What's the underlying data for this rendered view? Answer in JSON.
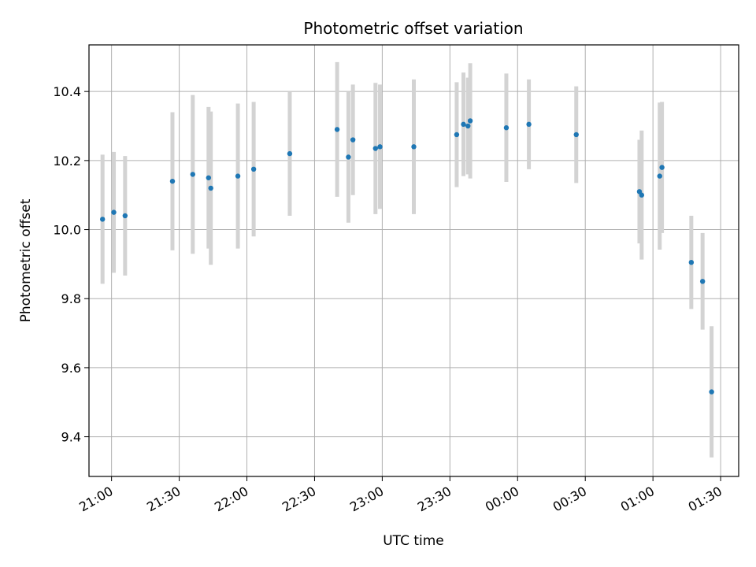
{
  "chart_data": {
    "type": "scatter",
    "title": "Photometric offset variation",
    "xlabel": "UTC time",
    "ylabel": "Photometric offset",
    "x_ticks": [
      "21:00",
      "21:30",
      "22:00",
      "22:30",
      "23:00",
      "23:30",
      "00:00",
      "00:30",
      "01:00",
      "01:30"
    ],
    "y_ticks": [
      "9.4",
      "9.6",
      "9.8",
      "10.0",
      "10.2",
      "10.4"
    ],
    "xlim": [
      "20:50",
      "01:38"
    ],
    "ylim": [
      9.285,
      10.535
    ],
    "grid": true,
    "colors": {
      "points": "#1f77b4",
      "errorbars": "#d3d3d3",
      "grid": "#b0b0b0"
    },
    "points": [
      {
        "x": "20:56",
        "y": 10.03,
        "err": 0.187
      },
      {
        "x": "21:01",
        "y": 10.05,
        "err": 0.175
      },
      {
        "x": "21:06",
        "y": 10.04,
        "err": 0.173
      },
      {
        "x": "21:27",
        "y": 10.14,
        "err": 0.2
      },
      {
        "x": "21:36",
        "y": 10.16,
        "err": 0.23
      },
      {
        "x": "21:43",
        "y": 10.15,
        "err": 0.205
      },
      {
        "x": "21:44",
        "y": 10.12,
        "err": 0.222
      },
      {
        "x": "21:56",
        "y": 10.155,
        "err": 0.21
      },
      {
        "x": "22:03",
        "y": 10.175,
        "err": 0.195
      },
      {
        "x": "22:19",
        "y": 10.22,
        "err": 0.18
      },
      {
        "x": "22:40",
        "y": 10.29,
        "err": 0.195
      },
      {
        "x": "22:45",
        "y": 10.21,
        "err": 0.19
      },
      {
        "x": "22:47",
        "y": 10.26,
        "err": 0.16
      },
      {
        "x": "22:57",
        "y": 10.235,
        "err": 0.19
      },
      {
        "x": "22:59",
        "y": 10.24,
        "err": 0.18
      },
      {
        "x": "23:14",
        "y": 10.24,
        "err": 0.195
      },
      {
        "x": "23:33",
        "y": 10.275,
        "err": 0.152
      },
      {
        "x": "23:36",
        "y": 10.305,
        "err": 0.15
      },
      {
        "x": "23:38",
        "y": 10.3,
        "err": 0.14
      },
      {
        "x": "23:39",
        "y": 10.315,
        "err": 0.167
      },
      {
        "x": "23:55",
        "y": 10.295,
        "err": 0.157
      },
      {
        "x": "00:05",
        "y": 10.305,
        "err": 0.13
      },
      {
        "x": "00:26",
        "y": 10.275,
        "err": 0.14
      },
      {
        "x": "00:54",
        "y": 10.11,
        "err": 0.15
      },
      {
        "x": "00:55",
        "y": 10.1,
        "err": 0.187
      },
      {
        "x": "01:03",
        "y": 10.155,
        "err": 0.213
      },
      {
        "x": "01:04",
        "y": 10.18,
        "err": 0.19
      },
      {
        "x": "01:17",
        "y": 9.905,
        "err": 0.135
      },
      {
        "x": "01:22",
        "y": 9.85,
        "err": 0.14
      },
      {
        "x": "01:26",
        "y": 9.53,
        "err": 0.19
      }
    ]
  }
}
